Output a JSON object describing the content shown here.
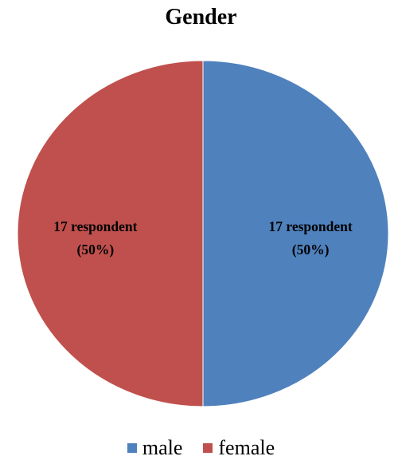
{
  "chart_data": {
    "type": "pie",
    "title": "Gender",
    "slices": [
      {
        "category": "male",
        "value": 17,
        "percent": 50,
        "label_line1": "17 respondent",
        "label_line2": "(50%)",
        "color": "#4f81bd"
      },
      {
        "category": "female",
        "value": 17,
        "percent": 50,
        "label_line1": "17 respondent",
        "label_line2": "(50%)",
        "color": "#c0504d"
      }
    ],
    "legend": {
      "placement": "bottom",
      "entries": [
        {
          "label": "male",
          "color": "#4f81bd"
        },
        {
          "label": "female",
          "color": "#c0504d"
        }
      ]
    }
  }
}
